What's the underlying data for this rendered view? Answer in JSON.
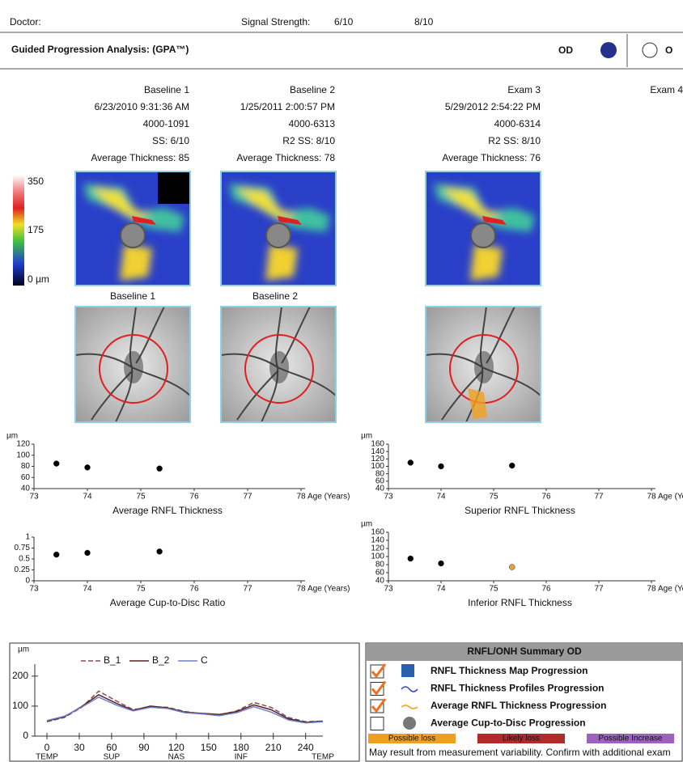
{
  "header": {
    "doctor_label": "Doctor:",
    "signal_label": "Signal Strength:",
    "signal_values": [
      "6/10",
      "8/10"
    ]
  },
  "title_bar": {
    "title": "Guided Progression Analysis: (GPA™)",
    "eye_selected": "OD",
    "eye_other": "O"
  },
  "exams": [
    {
      "lines": [
        "Baseline 1",
        "6/23/2010 9:31:36 AM",
        "4000-1091",
        "SS: 6/10",
        "Average Thickness: 85"
      ]
    },
    {
      "lines": [
        "Baseline 2",
        "1/25/2011 2:00:57 PM",
        "4000-6313",
        "R2 SS: 8/10",
        "Average Thickness: 78"
      ]
    },
    {
      "lines": [
        "Exam 3",
        "5/29/2012 2:54:22 PM",
        "4000-6314",
        "R2 SS: 8/10",
        "Average Thickness: 76"
      ]
    },
    {
      "lines": [
        "Exam 4"
      ]
    }
  ],
  "color_scale": {
    "labels": [
      "350",
      "175",
      "0 µm"
    ]
  },
  "image_labels": [
    "Baseline 1",
    "Baseline 2"
  ],
  "chart_data": [
    {
      "type": "scatter",
      "title": "Average RNFL Thickness",
      "y_label": "µm",
      "x_label": "Age (Years)",
      "x": [
        73.42,
        74.0,
        75.35
      ],
      "values": [
        85,
        78,
        76
      ],
      "colors": [
        "#000000",
        "#000000",
        "#000000"
      ],
      "xlim": [
        73,
        78
      ],
      "xticks": [
        73,
        74,
        75,
        76,
        77,
        78
      ],
      "ylim": [
        40,
        120
      ],
      "yticks": [
        40,
        60,
        80,
        100,
        120
      ]
    },
    {
      "type": "scatter",
      "title": "Superior RNFL Thickness",
      "y_label": "µm",
      "x_label": "Age (Years)",
      "x": [
        73.42,
        74.0,
        75.35
      ],
      "values": [
        110,
        100,
        102
      ],
      "colors": [
        "#000000",
        "#000000",
        "#000000"
      ],
      "xlim": [
        73,
        78
      ],
      "xticks": [
        73,
        74,
        75,
        76,
        77,
        78
      ],
      "ylim": [
        40,
        160
      ],
      "yticks": [
        40,
        60,
        80,
        100,
        120,
        140,
        160
      ]
    },
    {
      "type": "scatter",
      "title": "Average Cup-to-Disc Ratio",
      "x_label": "Age (Years)",
      "x": [
        73.42,
        74.0,
        75.35
      ],
      "values": [
        0.6,
        0.64,
        0.67
      ],
      "colors": [
        "#000000",
        "#000000",
        "#000000"
      ],
      "xlim": [
        73,
        78
      ],
      "xticks": [
        73,
        74,
        75,
        76,
        77,
        78
      ],
      "ylim": [
        0,
        1
      ],
      "yticks": [
        0,
        0.25,
        0.5,
        0.75,
        1
      ]
    },
    {
      "type": "scatter",
      "title": "Inferior RNFL Thickness",
      "y_label": "µm",
      "x_label": "Age (Years)",
      "x": [
        73.42,
        74.0,
        75.35
      ],
      "values": [
        95,
        83,
        74
      ],
      "colors": [
        "#000000",
        "#000000",
        "#e8a040"
      ],
      "xlim": [
        73,
        78
      ],
      "xticks": [
        73,
        74,
        75,
        76,
        77,
        78
      ],
      "ylim": [
        40,
        160
      ],
      "yticks": [
        40,
        60,
        80,
        100,
        120,
        140,
        160
      ]
    },
    {
      "type": "line",
      "y_label": "µm",
      "x": [
        0,
        16,
        32,
        48,
        64,
        80,
        96,
        112,
        128,
        144,
        160,
        176,
        192,
        208,
        224,
        240,
        256
      ],
      "series": [
        {
          "name": "B_1",
          "color": "#8b4a4a",
          "dashed": true,
          "values": [
            48,
            62,
            95,
            150,
            118,
            88,
            98,
            96,
            82,
            74,
            70,
            84,
            112,
            96,
            62,
            48,
            50
          ]
        },
        {
          "name": "B_2",
          "color": "#5a2020",
          "dashed": false,
          "values": [
            50,
            64,
            98,
            138,
            110,
            86,
            100,
            94,
            80,
            76,
            72,
            82,
            104,
            88,
            58,
            46,
            50
          ]
        },
        {
          "name": "C",
          "color": "#6a7fd0",
          "dashed": false,
          "values": [
            52,
            66,
            96,
            130,
            104,
            84,
            96,
            92,
            78,
            74,
            68,
            78,
            98,
            80,
            54,
            44,
            48
          ]
        }
      ],
      "xlim": [
        0,
        256
      ],
      "xticks": [
        0,
        30,
        60,
        90,
        120,
        150,
        180,
        210,
        240
      ],
      "ylim": [
        0,
        240
      ],
      "yticks": [
        0,
        100,
        200
      ],
      "region_labels": [
        {
          "value": 0,
          "label": "TEMP"
        },
        {
          "value": 60,
          "label": "SUP"
        },
        {
          "value": 120,
          "label": "NAS"
        },
        {
          "value": 180,
          "label": "INF"
        },
        {
          "value": 256,
          "label": "TEMP"
        }
      ]
    }
  ],
  "summary": {
    "title": "RNFL/ONH Summary OD",
    "items": [
      {
        "label": "RNFL Thickness Map Progression",
        "checked": true
      },
      {
        "label": "RNFL Thickness Profiles Progression",
        "checked": true
      },
      {
        "label": "Average RNFL Thickness Progression",
        "checked": true
      },
      {
        "label": "Average Cup-to-Disc Progression",
        "checked": false
      }
    ],
    "legend": [
      {
        "label": "Possible loss",
        "color": "#f0a020"
      },
      {
        "label": "Likely loss",
        "color": "#b02a2a"
      },
      {
        "label": "Possible Increase",
        "color": "#a060c0"
      }
    ],
    "note": "May result from measurement variability. Confirm with additional exam"
  }
}
